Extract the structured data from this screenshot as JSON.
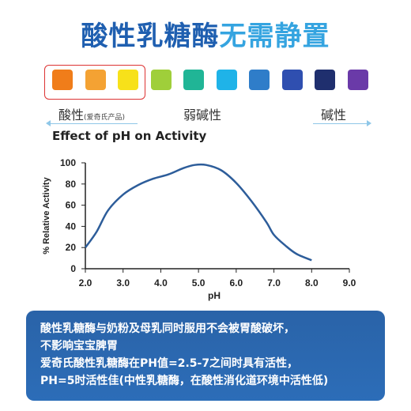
{
  "heading": {
    "part1": "酸性乳糖酶",
    "part2": "无需静置"
  },
  "swatches": [
    "#f07d1a",
    "#f4a233",
    "#f7e11a",
    "#9fcf3a",
    "#20b596",
    "#1fb3e8",
    "#2f7dc9",
    "#2f4fb0",
    "#1f2f6e",
    "#6a3aa8"
  ],
  "scale_labels": {
    "acid": "酸性",
    "acid_note": "(爱奇氏产品)",
    "weak_base": "弱碱性",
    "base": "碱性"
  },
  "chart_data": {
    "type": "line",
    "title": "Effect of pH on Activity",
    "xlabel": "pH",
    "ylabel": "% Relative Activity",
    "xlim": [
      2.0,
      9.0
    ],
    "ylim": [
      0,
      100
    ],
    "xticks": [
      "2.0",
      "3.0",
      "4.0",
      "5.0",
      "6.0",
      "7.0",
      "8.0",
      "9.0"
    ],
    "yticks": [
      "0",
      "20",
      "40",
      "60",
      "80",
      "100"
    ],
    "series": [
      {
        "x": [
          2.0,
          2.3,
          2.6,
          3.0,
          3.4,
          3.8,
          4.2,
          4.6,
          4.9,
          5.2,
          5.6,
          6.0,
          6.4,
          6.8,
          7.0,
          7.3,
          7.6,
          8.0
        ],
        "y": [
          20,
          35,
          55,
          70,
          79,
          85,
          89,
          95,
          98,
          98,
          93,
          81,
          64,
          44,
          32,
          22,
          14,
          8
        ]
      }
    ]
  },
  "info": {
    "line1": "酸性乳糖酶与奶粉及母乳同时服用不会被胃酸破坏，",
    "line2": "不影响宝宝脾胃",
    "line3": "爱奇氏酸性乳糖酶在PH值=2.5-7之间时具有活性，",
    "line4": "PH=5时活性佳(中性乳糖酶，在酸性消化道环境中活性低)"
  }
}
